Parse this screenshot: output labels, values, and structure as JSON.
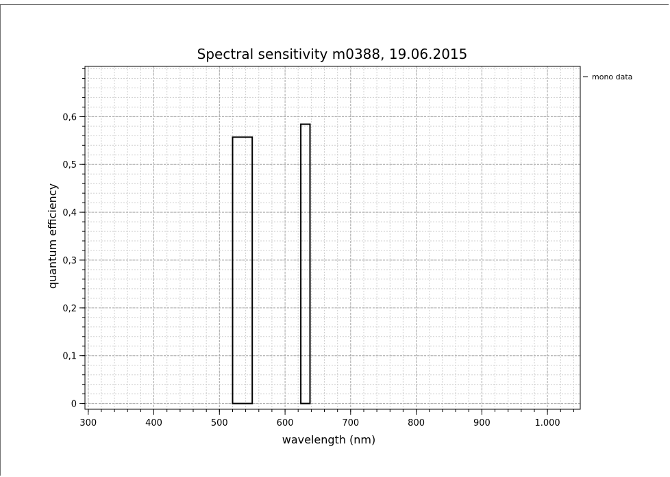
{
  "chart_data": {
    "type": "bar",
    "title": "Spectral sensitivity m0388, 19.06.2015",
    "xlabel": "wavelength (nm)",
    "ylabel": "quantum efficiency",
    "xlim": [
      295,
      1050
    ],
    "ylim": [
      -0.012,
      0.705
    ],
    "x_ticks": [
      300,
      400,
      500,
      600,
      700,
      800,
      900,
      1000
    ],
    "x_tick_labels": [
      "300",
      "400",
      "500",
      "600",
      "700",
      "800",
      "900",
      "1.000"
    ],
    "y_ticks": [
      0,
      0.1,
      0.2,
      0.3,
      0.4,
      0.5,
      0.6
    ],
    "y_tick_labels": [
      "0",
      "0,1",
      "0,2",
      "0,3",
      "0,4",
      "0,5",
      "0,6"
    ],
    "grid": true,
    "legend_position": "top-right",
    "series": [
      {
        "name": "mono data",
        "bars": [
          {
            "x_start": 520,
            "x_end": 550,
            "value": 0.557
          },
          {
            "x_start": 624,
            "x_end": 638,
            "value": 0.584
          }
        ]
      }
    ]
  }
}
